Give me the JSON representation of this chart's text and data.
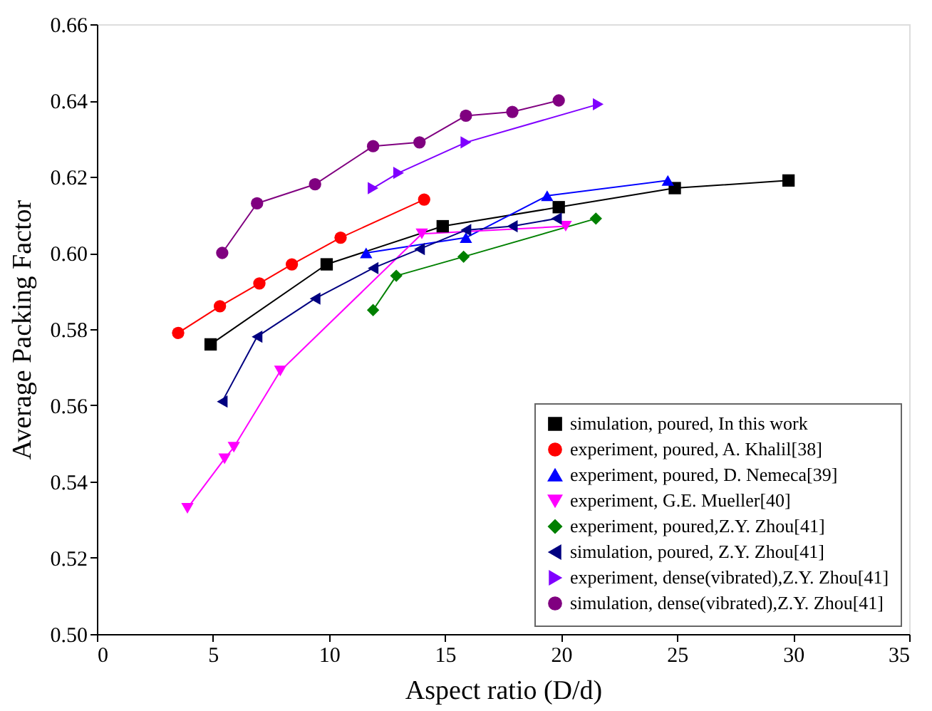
{
  "chart_data": {
    "type": "line",
    "xlabel": "Aspect ratio (D/d)",
    "ylabel": "Average Packing Factor",
    "xlim": [
      0,
      35
    ],
    "xticks": [
      0,
      5,
      10,
      15,
      20,
      25,
      30,
      35
    ],
    "ylim": [
      0.5,
      0.66
    ],
    "yticks": [
      {
        "value": 0.5,
        "label": "0.50"
      },
      {
        "value": 0.52,
        "label": "0.52"
      },
      {
        "value": 0.54,
        "label": "0.54"
      },
      {
        "value": 0.56,
        "label": "0.56"
      },
      {
        "value": 0.58,
        "label": "0.58"
      },
      {
        "value": 0.6,
        "label": "0.60"
      },
      {
        "value": 0.62,
        "label": "0.62"
      },
      {
        "value": 0.64,
        "label": "0.64"
      },
      {
        "value": 0.66,
        "label": "0.66"
      }
    ],
    "grid": false,
    "legend": "bottom right",
    "series": [
      {
        "name": "simulation, poured, In this work",
        "color": "#000000",
        "marker": "square",
        "x": [
          4.9,
          9.9,
          14.9,
          19.9,
          24.9,
          29.8
        ],
        "values": [
          0.576,
          0.597,
          0.607,
          0.612,
          0.617,
          0.619
        ]
      },
      {
        "name": "experiment, poured, A. Khalil[38]",
        "color": "#ff0000",
        "marker": "circle",
        "x": [
          3.5,
          5.3,
          7.0,
          8.4,
          10.5,
          14.1
        ],
        "values": [
          0.579,
          0.586,
          0.592,
          0.597,
          0.604,
          0.614
        ]
      },
      {
        "name": "experiment, poured, D. Nemeca[39]",
        "color": "#0000ff",
        "marker": "triangle-up",
        "x": [
          11.6,
          15.9,
          19.4,
          24.6
        ],
        "values": [
          0.6,
          0.604,
          0.615,
          0.619
        ]
      },
      {
        "name": "experiment, G.E. Mueller[40]",
        "color": "#ff00ff",
        "marker": "triangle-down",
        "x": [
          3.9,
          5.5,
          5.9,
          7.9,
          14.0,
          20.2
        ],
        "values": [
          0.533,
          0.546,
          0.549,
          0.569,
          0.605,
          0.607
        ]
      },
      {
        "name": "experiment, poured,Z.Y. Zhou[41]",
        "color": "#008000",
        "marker": "diamond",
        "x": [
          11.9,
          12.9,
          15.8,
          21.5
        ],
        "values": [
          0.585,
          0.594,
          0.599,
          0.609
        ]
      },
      {
        "name": "simulation, poured, Z.Y. Zhou[41]",
        "color": "#000080",
        "marker": "triangle-left",
        "x": [
          5.4,
          6.9,
          9.4,
          11.9,
          13.9,
          15.9,
          17.9,
          19.8
        ],
        "values": [
          0.561,
          0.578,
          0.588,
          0.596,
          0.601,
          0.606,
          0.607,
          0.609
        ]
      },
      {
        "name": "experiment, dense(vibrated),Z.Y. Zhou[41]",
        "color": "#8000ff",
        "marker": "triangle-right",
        "x": [
          11.9,
          13.0,
          15.9,
          21.6
        ],
        "values": [
          0.617,
          0.621,
          0.629,
          0.639
        ]
      },
      {
        "name": "simulation, dense(vibrated),Z.Y. Zhou[41]",
        "color": "#800080",
        "marker": "circle",
        "x": [
          5.4,
          6.9,
          9.4,
          11.9,
          13.9,
          15.9,
          17.9,
          19.9
        ],
        "values": [
          0.6,
          0.613,
          0.618,
          0.628,
          0.629,
          0.636,
          0.637,
          0.64
        ]
      }
    ]
  }
}
